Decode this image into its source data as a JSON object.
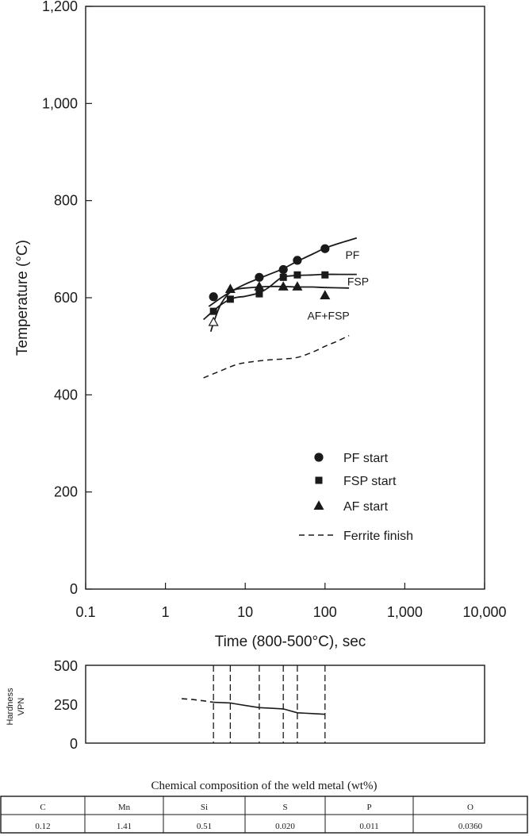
{
  "chart_data": [
    {
      "type": "scatter",
      "xlabel": "Time (800-500°C), sec",
      "ylabel": "Temperature (°C)",
      "xscale": "log",
      "xlim": [
        0.1,
        10000
      ],
      "ylim": [
        0,
        1200
      ],
      "x_ticks": [
        {
          "v": 0.1,
          "label": "0.1"
        },
        {
          "v": 1,
          "label": "1"
        },
        {
          "v": 10,
          "label": "10"
        },
        {
          "v": 100,
          "label": "100"
        },
        {
          "v": 1000,
          "label": "1,000"
        },
        {
          "v": 10000,
          "label": "10,000"
        }
      ],
      "y_ticks": [
        {
          "v": 0,
          "label": "0"
        },
        {
          "v": 200,
          "label": "200"
        },
        {
          "v": 400,
          "label": "400"
        },
        {
          "v": 600,
          "label": "600"
        },
        {
          "v": 800,
          "label": "800"
        },
        {
          "v": 1000,
          "label": "1,000"
        },
        {
          "v": 1200,
          "label": "1,200"
        }
      ],
      "grid": false,
      "legend_position": "bottom-right",
      "legend": [
        {
          "marker": "circle",
          "label": "PF start"
        },
        {
          "marker": "square",
          "label": "FSP start"
        },
        {
          "marker": "triangle",
          "label": "AF start"
        },
        {
          "marker": "dash",
          "label": "Ferrite finish"
        }
      ],
      "series": [
        {
          "name": "PF start",
          "marker": "circle",
          "x": [
            4,
            15,
            30,
            45,
            100
          ],
          "y": [
            602,
            642,
            658,
            677,
            701
          ]
        },
        {
          "name": "FSP start",
          "marker": "square",
          "x": [
            4,
            6.5,
            15,
            30,
            45,
            100
          ],
          "y": [
            572,
            597,
            608,
            642,
            647,
            647
          ]
        },
        {
          "name": "AF start",
          "marker": "triangle",
          "x": [
            4,
            6.5,
            15,
            30,
            45,
            100
          ],
          "y": [
            550,
            618,
            623,
            623,
            623,
            605
          ],
          "hollow": [
            true,
            false,
            false,
            false,
            false,
            false
          ]
        },
        {
          "name": "Ferrite finish",
          "style": "dashed",
          "x": [
            3,
            5,
            8,
            12,
            20,
            30,
            45,
            70,
            100,
            140,
            200
          ],
          "y": [
            435,
            450,
            463,
            468,
            472,
            474,
            477,
            488,
            500,
            510,
            522
          ]
        }
      ],
      "curves": [
        {
          "style": "solid",
          "x": [
            3.5,
            5,
            7,
            10,
            15,
            20,
            30,
            45,
            70,
            100,
            150,
            250
          ],
          "y": [
            582,
            600,
            615,
            628,
            640,
            648,
            660,
            675,
            690,
            702,
            712,
            723
          ]
        },
        {
          "style": "solid",
          "x": [
            3,
            4,
            5,
            6.5,
            8,
            10,
            15,
            20,
            25,
            30,
            45,
            70,
            100,
            150,
            250
          ],
          "y": [
            555,
            573,
            586,
            597,
            601,
            603,
            610,
            622,
            635,
            643,
            646,
            647,
            648,
            648,
            648
          ]
        },
        {
          "style": "solid",
          "x": [
            3.7,
            4,
            4.5,
            5,
            6,
            7,
            8,
            10,
            15,
            20,
            30,
            45,
            70,
            100,
            200
          ],
          "y": [
            530,
            548,
            571,
            588,
            606,
            615,
            618,
            620,
            622,
            623,
            623,
            622,
            622,
            621,
            620
          ]
        }
      ],
      "annotations": [
        {
          "text": "PF",
          "x": 180,
          "y": 680
        },
        {
          "text": "FSP",
          "x": 190,
          "y": 625
        },
        {
          "text": "AF+FSP",
          "x": 60,
          "y": 555
        }
      ]
    },
    {
      "type": "line",
      "ylabel": "Hardness VPN",
      "ylabel_lines": [
        "Hardness",
        "VPN"
      ],
      "xscale": "log",
      "xlim": [
        0.1,
        10000
      ],
      "ylim": [
        0,
        500
      ],
      "y_ticks": [
        {
          "v": 0,
          "label": "0"
        },
        {
          "v": 250,
          "label": "250"
        },
        {
          "v": 500,
          "label": "500"
        }
      ],
      "grid": false,
      "series": [
        {
          "name": "",
          "style": "dashed",
          "x": [
            1.6,
            2.2,
            3,
            4
          ],
          "y": [
            285,
            280,
            272,
            262
          ]
        },
        {
          "name": "",
          "style": "solid",
          "x": [
            4,
            6.5,
            8,
            10,
            15,
            20,
            30,
            45,
            70,
            100
          ],
          "y": [
            262,
            258,
            250,
            242,
            228,
            225,
            220,
            195,
            190,
            185
          ]
        }
      ],
      "reference_lines_x": [
        4,
        6.5,
        15,
        30,
        45,
        100
      ]
    }
  ],
  "composition_table": {
    "title": "Chemical composition of the weld metal (wt%)",
    "headers": [
      "C",
      "Mn",
      "Si",
      "S",
      "P",
      "O"
    ],
    "values": [
      "0.12",
      "1.41",
      "0.51",
      "0.020",
      "0.011",
      "0.0360"
    ]
  }
}
